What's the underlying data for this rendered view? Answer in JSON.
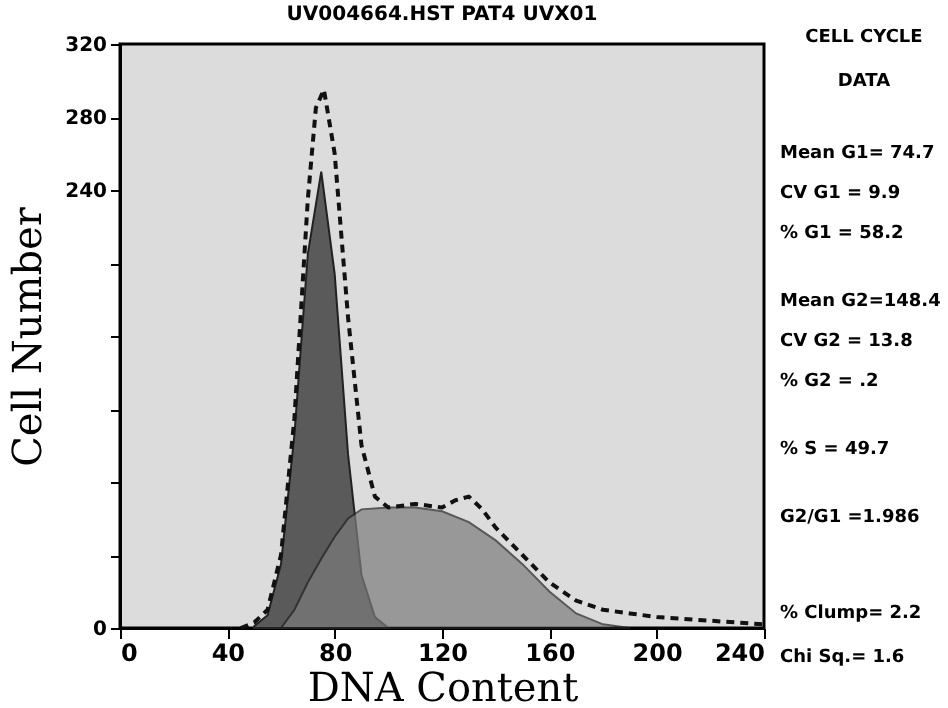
{
  "chart_data": {
    "type": "area",
    "title": "UV004664.HST PAT4 UVX01",
    "xlabel": "DNA Content",
    "ylabel": "Cell Number",
    "xlim": [
      0,
      240
    ],
    "xticks": [
      0,
      40,
      80,
      120,
      160,
      200,
      240
    ],
    "ylim": [
      0,
      320
    ],
    "yticks": [
      0,
      {
        "value": 40,
        "label": null
      },
      {
        "value": 80,
        "label": null
      },
      {
        "value": 120,
        "label": null
      },
      {
        "value": 160,
        "label": null
      },
      {
        "value": 200,
        "label": null
      },
      240,
      280,
      320
    ],
    "grid": false,
    "line_style": "dashed",
    "series": [
      {
        "color": "#5a5a5a",
        "x": [
          50,
          55,
          60,
          65,
          70,
          75,
          80,
          85,
          90,
          95,
          100
        ],
        "values": [
          1,
          7,
          35,
          106,
          205,
          250,
          194,
          95,
          29,
          6,
          0
        ]
      },
      {
        "color": "#7c7c7c",
        "x": [
          60,
          65,
          70,
          75,
          80,
          85,
          90,
          100,
          110,
          120,
          130,
          140,
          150,
          160,
          170,
          180,
          190
        ],
        "values": [
          0,
          10,
          25,
          38,
          50,
          60,
          65,
          66,
          66,
          64,
          58,
          48,
          35,
          20,
          8,
          2,
          0
        ]
      },
      {
        "type": "line",
        "color": "#111111",
        "x": [
          45,
          50,
          55,
          60,
          65,
          70,
          73,
          76,
          80,
          85,
          90,
          95,
          100,
          110,
          120,
          125,
          130,
          135,
          140,
          150,
          160,
          170,
          180,
          190,
          200,
          210,
          220,
          230,
          240
        ],
        "values": [
          0,
          3,
          10,
          40,
          115,
          235,
          285,
          295,
          260,
          170,
          100,
          72,
          66,
          68,
          66,
          70,
          72,
          65,
          55,
          40,
          25,
          15,
          10,
          8,
          6,
          5,
          4,
          3,
          2
        ]
      }
    ],
    "annotations": [
      "CELL  CYCLE",
      "DATA",
      "Mean G1= 74.7",
      "CV G1  =  9.9",
      "% G1  = 58.2",
      "Mean G2=148.4",
      "CV G2  = 13.8",
      "% G2  =   .2",
      "% S  = 49.7",
      "G2/G1  =1.986",
      "% Clump=  2.2",
      "Chi Sq.=  1.6"
    ]
  }
}
